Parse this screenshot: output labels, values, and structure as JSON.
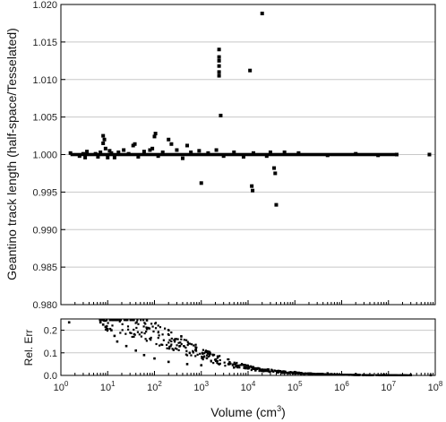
{
  "chart_data": [
    {
      "type": "scatter",
      "title": "",
      "ylabel": "Geantino track length (half-space/Tesselated)",
      "xscale": "log",
      "xlim": [
        1,
        100000000
      ],
      "ylim": [
        0.98,
        1.02
      ],
      "yticks": [
        "0.980",
        "0.985",
        "0.990",
        "0.995",
        "1.000",
        "1.005",
        "1.010",
        "1.015",
        "1.020"
      ],
      "grid": "horizontal",
      "marker_color": "#000000",
      "baseline": {
        "value": 1.0,
        "x_range": [
          1.6,
          15000000
        ]
      },
      "points": [
        [
          1.6,
          1.0002
        ],
        [
          2.5,
          0.9998
        ],
        [
          3.0,
          1.0001
        ],
        [
          3.3,
          0.9996
        ],
        [
          3.6,
          1.0004
        ],
        [
          5.5,
          1.0001
        ],
        [
          6.2,
          0.9997
        ],
        [
          7.0,
          1.0003
        ],
        [
          8.0,
          1.0015
        ],
        [
          8.0,
          1.0025
        ],
        [
          8.5,
          1.002
        ],
        [
          9.0,
          1.0008
        ],
        [
          10.0,
          0.9996
        ],
        [
          11.0,
          1.0005
        ],
        [
          12.0,
          1.0002
        ],
        [
          14.0,
          0.9996
        ],
        [
          17.0,
          1.0003
        ],
        [
          22.0,
          1.0006
        ],
        [
          28.0,
          1.0001
        ],
        [
          35.0,
          1.0012
        ],
        [
          38.0,
          1.0014
        ],
        [
          45.0,
          0.9997
        ],
        [
          60.0,
          1.0004
        ],
        [
          80.0,
          1.0006
        ],
        [
          90.0,
          1.0008
        ],
        [
          100.0,
          1.0024
        ],
        [
          105.0,
          1.0028
        ],
        [
          120.0,
          0.9998
        ],
        [
          150.0,
          1.0003
        ],
        [
          200.0,
          1.002
        ],
        [
          230.0,
          1.0014
        ],
        [
          300.0,
          1.0006
        ],
        [
          400.0,
          0.9995
        ],
        [
          500.0,
          1.0012
        ],
        [
          600.0,
          1.0003
        ],
        [
          900.0,
          1.0005
        ],
        [
          1000.0,
          0.9962
        ],
        [
          1400.0,
          1.0002
        ],
        [
          2100.0,
          1.0006
        ],
        [
          2400.0,
          1.0105
        ],
        [
          2400.0,
          1.011
        ],
        [
          2400.0,
          1.0118
        ],
        [
          2400.0,
          1.0125
        ],
        [
          2400.0,
          1.013
        ],
        [
          2400.0,
          1.014
        ],
        [
          2600.0,
          1.0052
        ],
        [
          3000.0,
          0.9998
        ],
        [
          5000.0,
          1.0003
        ],
        [
          8000.0,
          0.9997
        ],
        [
          11000.0,
          1.0112
        ],
        [
          12000.0,
          0.9958
        ],
        [
          12500.0,
          0.9952
        ],
        [
          13000.0,
          1.0002
        ],
        [
          20000.0,
          1.0188
        ],
        [
          25000.0,
          0.9998
        ],
        [
          30000.0,
          1.0003
        ],
        [
          36000.0,
          0.9982
        ],
        [
          38000.0,
          0.9975
        ],
        [
          40000.0,
          0.9933
        ],
        [
          60000.0,
          1.0003
        ],
        [
          120000.0,
          1.0002
        ],
        [
          500000.0,
          0.9999
        ],
        [
          2000000.0,
          1.0001
        ],
        [
          6000000.0,
          0.9999
        ],
        [
          15000000.0,
          1.0
        ],
        [
          75000000.0,
          1.0
        ]
      ]
    },
    {
      "type": "scatter",
      "title": "",
      "xlabel_prefix": "Volume (cm",
      "xlabel_sup": "3",
      "xlabel_suffix": ")",
      "ylabel": "Rel. Err",
      "xscale": "log",
      "xlim": [
        1,
        100000000
      ],
      "ylim": [
        0.0,
        0.25
      ],
      "yticks": [
        "0.0",
        "0.1",
        "0.2"
      ],
      "xtick_base": "10",
      "xtick_exponents": [
        "0",
        "1",
        "2",
        "3",
        "4",
        "5",
        "6",
        "7",
        "8"
      ],
      "grid": "horizontal",
      "marker_color": "#000000",
      "trend": {
        "description": "relative error decreasing with volume",
        "model": "0.3/(1+0.05*V^0.55) + noise"
      },
      "points": [
        [
          1.5,
          0.235
        ],
        [
          7.0,
          0.235
        ],
        [
          8.0,
          0.225
        ],
        [
          9.0,
          0.215
        ],
        [
          10.0,
          0.205
        ],
        [
          12.0,
          0.2
        ],
        [
          14.0,
          0.175
        ],
        [
          16.0,
          0.15
        ],
        [
          25.0,
          0.13
        ],
        [
          40.0,
          0.11
        ],
        [
          60.0,
          0.09
        ],
        [
          100.0,
          0.075
        ],
        [
          200.0,
          0.06
        ],
        [
          500.0,
          0.05
        ],
        [
          1000.0,
          0.045
        ],
        [
          5000.0,
          0.035
        ],
        [
          20000.0,
          0.025
        ],
        [
          100000.0,
          0.015
        ],
        [
          500000.0,
          0.009
        ],
        [
          2000000.0,
          0.005
        ],
        [
          8000000.0,
          0.003
        ],
        [
          30000000.0,
          0.002
        ],
        [
          80000000.0,
          0.001
        ]
      ]
    }
  ]
}
